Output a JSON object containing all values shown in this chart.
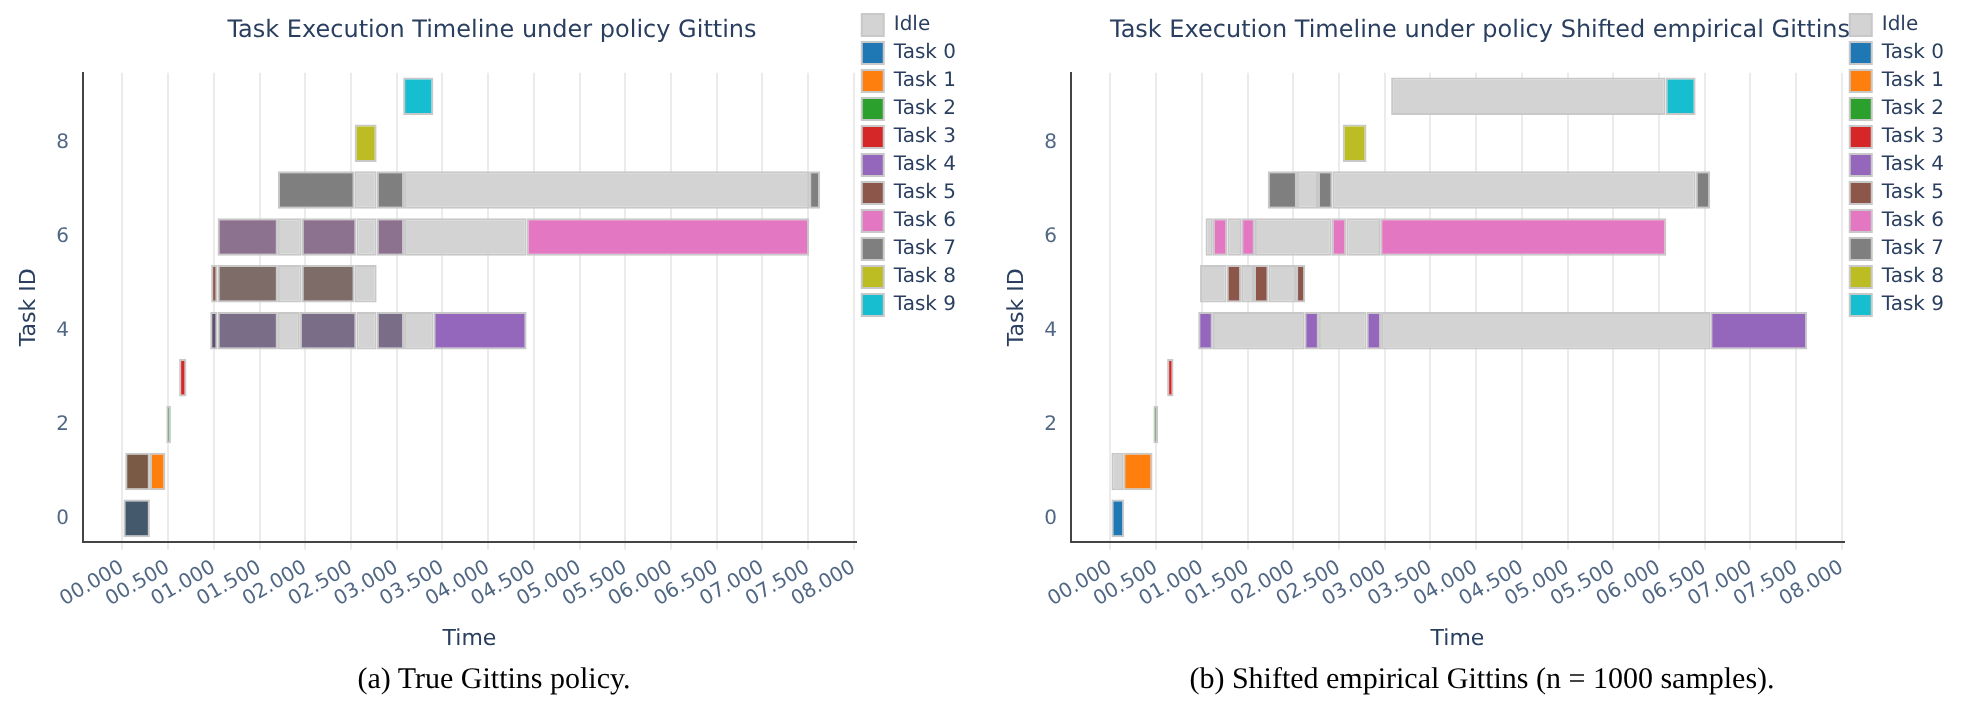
{
  "chart_data": [
    {
      "type": "bar",
      "orientation": "horizontal",
      "title": "Task Execution Timeline under policy Gittins",
      "xlabel": "Time",
      "ylabel": "Task ID",
      "legend": "top right",
      "grid": "x",
      "categories": [
        null,
        "8",
        null,
        "6",
        null,
        "4",
        null,
        "2",
        null,
        "0"
      ],
      "xlim": [
        -0.43,
        8.02
      ],
      "xticks": [
        {
          "value": 0,
          "label": "00.000"
        },
        {
          "value": 0.5,
          "label": "00.500"
        },
        {
          "value": 1,
          "label": "01.000"
        },
        {
          "value": 1.5,
          "label": "01.500"
        },
        {
          "value": 2,
          "label": "02.000"
        },
        {
          "value": 2.5,
          "label": "02.500"
        },
        {
          "value": 3,
          "label": "03.000"
        },
        {
          "value": 3.5,
          "label": "03.500"
        },
        {
          "value": 4,
          "label": "04.000"
        },
        {
          "value": 4.5,
          "label": "04.500"
        },
        {
          "value": 5,
          "label": "05.000"
        },
        {
          "value": 5.5,
          "label": "05.500"
        },
        {
          "value": 6,
          "label": "06.000"
        },
        {
          "value": 6.5,
          "label": "06.500"
        },
        {
          "value": 7,
          "label": "07.000"
        },
        {
          "value": 7.5,
          "label": "07.500"
        },
        {
          "value": 8,
          "label": "08.000"
        }
      ],
      "annotations": [
        "(a) True Gittins policy."
      ],
      "series": [
        {
          "name": "Idle",
          "color": "#d3d3d3",
          "values": [
            null,
            null,
            0.24,
            0.26,
            0.26,
            0.24,
            null,
            null,
            null,
            null
          ],
          "base": [
            null,
            null,
            2.54,
            1.7,
            1.7,
            1.7,
            null,
            null,
            null,
            null
          ]
        },
        {
          "name": "Task 0",
          "color": "#1f77b4",
          "values": [
            null,
            null,
            null,
            null,
            null,
            null,
            null,
            null,
            null,
            null
          ],
          "base": [
            null,
            null,
            null,
            null,
            null,
            null,
            null,
            null,
            null,
            null
          ]
        },
        {
          "name": "Task 1",
          "color": "#ff7f0e",
          "values": [
            null,
            null,
            null,
            null,
            null,
            null,
            null,
            null,
            0.17,
            null
          ],
          "base": [
            null,
            null,
            null,
            null,
            null,
            null,
            null,
            null,
            0.3,
            null
          ]
        },
        {
          "name": "Task 2",
          "color": "#2ca02c",
          "values": [
            null,
            null,
            null,
            null,
            null,
            null,
            null,
            0.05,
            null,
            null
          ],
          "base": [
            null,
            null,
            null,
            null,
            null,
            null,
            null,
            0.48,
            null,
            null
          ]
        },
        {
          "name": "Task 3",
          "color": "#d62728",
          "values": [
            null,
            null,
            null,
            null,
            null,
            null,
            0.08,
            null,
            null,
            null
          ],
          "base": [
            null,
            null,
            null,
            null,
            null,
            null,
            0.62,
            null,
            null,
            null
          ]
        },
        {
          "name": "Task 4",
          "color": "#9467bd",
          "values": [
            null,
            null,
            null,
            null,
            null,
            1.02,
            null,
            null,
            null,
            null
          ],
          "base": [
            null,
            null,
            null,
            null,
            null,
            3.4,
            null,
            null,
            null,
            null
          ]
        },
        {
          "name": "Task 5",
          "color": "#8c564b",
          "values": [
            null,
            null,
            null,
            null,
            0.07,
            null,
            null,
            null,
            null,
            null
          ],
          "base": [
            null,
            null,
            null,
            null,
            0.97,
            null,
            null,
            null,
            null,
            null
          ]
        },
        {
          "name": "Task 6",
          "color": "#e377c2",
          "values": [
            null,
            null,
            null,
            3.09,
            null,
            null,
            null,
            null,
            null,
            null
          ],
          "base": [
            null,
            null,
            null,
            4.42,
            null,
            null,
            null,
            null,
            null,
            null
          ]
        },
        {
          "name": "Task 7",
          "color": "#7f7f7f",
          "values": [
            null,
            null,
            0.84,
            null,
            null,
            null,
            null,
            null,
            null,
            null
          ],
          "base": [
            null,
            null,
            1.7,
            null,
            null,
            null,
            null,
            null,
            null,
            null
          ]
        },
        {
          "name": "Task 8",
          "color": "#bcbd22",
          "values": [
            null,
            0.24,
            null,
            null,
            null,
            null,
            null,
            null,
            null,
            null
          ],
          "base": [
            null,
            2.54,
            null,
            null,
            null,
            null,
            null,
            null,
            null,
            null
          ]
        },
        {
          "name": "Task 9",
          "color": "#17becf",
          "values": [
            0.33,
            null,
            null,
            null,
            null,
            null,
            null,
            null,
            null,
            null
          ],
          "base": [
            3.07,
            null,
            null,
            null,
            null,
            null,
            null,
            null,
            null,
            null
          ]
        },
        {
          "color": "#d3d3d3",
          "values": [
            null,
            null,
            4.43,
            0.22,
            0.24,
            0.22,
            null,
            null,
            null,
            null
          ],
          "base": [
            null,
            null,
            3.08,
            2.56,
            2.54,
            2.56,
            null,
            null,
            null,
            null
          ]
        },
        {
          "color": "#d3d3d3",
          "values": [
            null,
            null,
            null,
            1.34,
            null,
            0.32,
            null,
            null,
            null,
            null
          ],
          "base": [
            null,
            null,
            null,
            3.08,
            null,
            3.08,
            null,
            null,
            null,
            null
          ]
        },
        {
          "color": "#7f7f7f",
          "values": [
            null,
            null,
            0.3,
            null,
            null,
            null,
            null,
            null,
            null,
            null
          ],
          "base": [
            null,
            null,
            2.78,
            null,
            null,
            null,
            null,
            null,
            null,
            null
          ]
        },
        {
          "color": "#7f7f7f",
          "values": [
            null,
            null,
            0.12,
            null,
            null,
            null,
            null,
            null,
            null,
            null
          ],
          "base": [
            null,
            null,
            7.51,
            null,
            null,
            null,
            null,
            null,
            null,
            null
          ]
        },
        {
          "color": "#44596b",
          "values": [
            null,
            null,
            null,
            null,
            null,
            null,
            null,
            null,
            null,
            0.3
          ],
          "base": [
            null,
            null,
            null,
            null,
            null,
            null,
            null,
            null,
            null,
            0
          ]
        },
        {
          "color": "#7a5a45",
          "values": [
            null,
            null,
            null,
            null,
            null,
            null,
            null,
            null,
            0.27,
            null
          ],
          "base": [
            null,
            null,
            null,
            null,
            null,
            null,
            null,
            null,
            0.03,
            null
          ]
        },
        {
          "color": "#5f5070",
          "values": [
            null,
            null,
            null,
            null,
            null,
            0.08,
            null,
            null,
            null,
            null
          ],
          "base": [
            null,
            null,
            null,
            null,
            null,
            0.96,
            null,
            null,
            null,
            null
          ]
        },
        {
          "color": "#7a6d88",
          "values": [
            null,
            null,
            null,
            null,
            null,
            0.66,
            null,
            null,
            null,
            null
          ],
          "base": [
            null,
            null,
            null,
            null,
            null,
            1.04,
            null,
            null,
            null,
            null
          ]
        },
        {
          "color": "#7a6d88",
          "values": [
            null,
            null,
            null,
            null,
            null,
            0.62,
            null,
            null,
            null,
            null
          ],
          "base": [
            null,
            null,
            null,
            null,
            null,
            1.94,
            null,
            null,
            null,
            null
          ]
        },
        {
          "color": "#7a6d88",
          "values": [
            null,
            null,
            null,
            null,
            null,
            0.3,
            null,
            null,
            null,
            null
          ],
          "base": [
            null,
            null,
            null,
            null,
            null,
            2.78,
            null,
            null,
            null,
            null
          ]
        },
        {
          "color": "#7d6c68",
          "values": [
            null,
            null,
            null,
            null,
            0.66,
            null,
            null,
            null,
            null,
            null
          ],
          "base": [
            null,
            null,
            null,
            null,
            1.04,
            null,
            null,
            null,
            null,
            null
          ]
        },
        {
          "color": "#7d6c68",
          "values": [
            null,
            null,
            null,
            null,
            0.58,
            null,
            null,
            null,
            null,
            null
          ],
          "base": [
            null,
            null,
            null,
            null,
            1.96,
            null,
            null,
            null,
            null,
            null
          ]
        },
        {
          "color": "#8d7290",
          "values": [
            null,
            null,
            null,
            0.66,
            null,
            null,
            null,
            null,
            null,
            null
          ],
          "base": [
            null,
            null,
            null,
            1.04,
            null,
            null,
            null,
            null,
            null,
            null
          ]
        },
        {
          "color": "#8d7290",
          "values": [
            null,
            null,
            null,
            0.6,
            null,
            null,
            null,
            null,
            null,
            null
          ],
          "base": [
            null,
            null,
            null,
            1.96,
            null,
            null,
            null,
            null,
            null,
            null
          ]
        },
        {
          "color": "#8d7290",
          "values": [
            null,
            null,
            null,
            0.3,
            null,
            null,
            null,
            null,
            null,
            null
          ],
          "base": [
            null,
            null,
            null,
            2.78,
            null,
            null,
            null,
            null,
            null,
            null
          ]
        }
      ]
    },
    {
      "type": "bar",
      "orientation": "horizontal",
      "title": "Task Execution Timeline under policy Shifted empirical Gittins",
      "xlabel": "Time",
      "ylabel": "Task ID",
      "legend": "top right",
      "grid": "x",
      "categories": [
        null,
        "8",
        null,
        "6",
        null,
        "4",
        null,
        "2",
        null,
        "0"
      ],
      "xlim": [
        -0.43,
        8.02
      ],
      "xticks": [
        {
          "value": 0,
          "label": "00.000"
        },
        {
          "value": 0.5,
          "label": "00.500"
        },
        {
          "value": 1,
          "label": "01.000"
        },
        {
          "value": 1.5,
          "label": "01.500"
        },
        {
          "value": 2,
          "label": "02.000"
        },
        {
          "value": 2.5,
          "label": "02.500"
        },
        {
          "value": 3,
          "label": "03.000"
        },
        {
          "value": 3.5,
          "label": "03.500"
        },
        {
          "value": 4,
          "label": "04.000"
        },
        {
          "value": 4.5,
          "label": "04.500"
        },
        {
          "value": 5,
          "label": "05.000"
        },
        {
          "value": 5.5,
          "label": "05.500"
        },
        {
          "value": 6,
          "label": "06.000"
        },
        {
          "value": 6.5,
          "label": "06.500"
        },
        {
          "value": 7,
          "label": "07.000"
        },
        {
          "value": 7.5,
          "label": "07.500"
        },
        {
          "value": 8,
          "label": "08.000"
        }
      ],
      "annotations": [
        "(b) Shifted empirical Gittins (n = 1000 samples)."
      ],
      "series": [
        {
          "name": "Idle",
          "color": "#d3d3d3",
          "values": [
            3.0,
            null,
            0.23,
            0.08,
            0.29,
            1.0,
            null,
            null,
            0.14,
            null
          ],
          "base": [
            3.07,
            null,
            2.04,
            1.04,
            0.98,
            1.12,
            null,
            null,
            0,
            null
          ]
        },
        {
          "name": "Task 0",
          "color": "#1f77b4",
          "values": [
            null,
            null,
            null,
            null,
            null,
            null,
            null,
            null,
            null,
            0.15
          ],
          "base": [
            null,
            null,
            null,
            null,
            null,
            null,
            null,
            null,
            null,
            0
          ]
        },
        {
          "name": "Task 1",
          "color": "#ff7f0e",
          "values": [
            null,
            null,
            null,
            null,
            null,
            null,
            null,
            null,
            0.32,
            null
          ],
          "base": [
            null,
            null,
            null,
            null,
            null,
            null,
            null,
            null,
            0.14,
            null
          ]
        },
        {
          "name": "Task 2",
          "color": "#2ca02c",
          "values": [
            null,
            null,
            null,
            null,
            null,
            null,
            null,
            0.05,
            null,
            null
          ],
          "base": [
            null,
            null,
            null,
            null,
            null,
            null,
            null,
            0.47,
            null,
            null
          ]
        },
        {
          "name": "Task 3",
          "color": "#d62728",
          "values": [
            null,
            null,
            null,
            null,
            null,
            null,
            0.07,
            null,
            null,
            null
          ],
          "base": [
            null,
            null,
            null,
            null,
            null,
            null,
            0.62,
            null,
            null,
            null
          ]
        },
        {
          "name": "Task 4",
          "color": "#9467bd",
          "values": [
            null,
            null,
            null,
            null,
            null,
            0.16,
            null,
            null,
            null,
            null
          ],
          "base": [
            null,
            null,
            null,
            null,
            null,
            0.96,
            null,
            null,
            null,
            null
          ]
        },
        {
          "name": "Task 5",
          "color": "#8c564b",
          "values": [
            null,
            null,
            null,
            null,
            0.16,
            null,
            null,
            null,
            null,
            null
          ],
          "base": [
            null,
            null,
            null,
            null,
            1.27,
            null,
            null,
            null,
            null,
            null
          ]
        },
        {
          "name": "Task 6",
          "color": "#e377c2",
          "values": [
            null,
            null,
            null,
            0.16,
            null,
            null,
            null,
            null,
            null,
            null
          ],
          "base": [
            null,
            null,
            null,
            1.12,
            null,
            null,
            null,
            null,
            null,
            null
          ]
        },
        {
          "name": "Task 7",
          "color": "#7f7f7f",
          "values": [
            null,
            null,
            0.32,
            null,
            null,
            null,
            null,
            null,
            null,
            null
          ],
          "base": [
            null,
            null,
            1.72,
            null,
            null,
            null,
            null,
            null,
            null,
            null
          ]
        },
        {
          "name": "Task 8",
          "color": "#bcbd22",
          "values": [
            null,
            0.26,
            null,
            null,
            null,
            null,
            null,
            null,
            null,
            null
          ],
          "base": [
            null,
            2.54,
            null,
            null,
            null,
            null,
            null,
            null,
            null,
            null
          ]
        },
        {
          "name": "Task 9",
          "color": "#17becf",
          "values": [
            0.33,
            null,
            null,
            null,
            null,
            null,
            null,
            null,
            null,
            null
          ],
          "base": [
            6.07,
            null,
            null,
            null,
            null,
            null,
            null,
            null,
            null,
            null
          ]
        },
        {
          "color": "#d3d3d3",
          "values": [
            null,
            null,
            3.97,
            0.15,
            0.14,
            0.52,
            null,
            null,
            null,
            null
          ],
          "base": [
            null,
            null,
            2.43,
            1.28,
            1.43,
            2.28,
            null,
            null,
            null,
            null
          ]
        },
        {
          "color": "#d3d3d3",
          "values": [
            null,
            null,
            null,
            0.84,
            0.3,
            3.6,
            null,
            null,
            null,
            null
          ],
          "base": [
            null,
            null,
            null,
            1.58,
            1.73,
            2.96,
            null,
            null,
            null,
            null
          ]
        },
        {
          "color": "#d3d3d3",
          "values": [
            null,
            null,
            null,
            0.37,
            null,
            null,
            null,
            null,
            null,
            null
          ],
          "base": [
            null,
            null,
            null,
            2.58,
            null,
            null,
            null,
            null,
            null,
            null
          ]
        },
        {
          "color": "#9467bd",
          "values": [
            null,
            null,
            null,
            null,
            null,
            0.16,
            null,
            null,
            null,
            null
          ],
          "base": [
            null,
            null,
            null,
            null,
            null,
            2.12,
            null,
            null,
            null,
            null
          ]
        },
        {
          "color": "#9467bd",
          "values": [
            null,
            null,
            null,
            null,
            null,
            0.16,
            null,
            null,
            null,
            null
          ],
          "base": [
            null,
            null,
            null,
            null,
            null,
            2.8,
            null,
            null,
            null,
            null
          ]
        },
        {
          "color": "#9467bd",
          "values": [
            null,
            null,
            null,
            null,
            null,
            1.06,
            null,
            null,
            null,
            null
          ],
          "base": [
            null,
            null,
            null,
            null,
            null,
            6.56,
            null,
            null,
            null,
            null
          ]
        },
        {
          "color": "#8c564b",
          "values": [
            null,
            null,
            null,
            null,
            0.16,
            null,
            null,
            null,
            null,
            null
          ],
          "base": [
            null,
            null,
            null,
            null,
            1.57,
            null,
            null,
            null,
            null,
            null
          ]
        },
        {
          "color": "#8c564b",
          "values": [
            null,
            null,
            null,
            null,
            0.1,
            null,
            null,
            null,
            null,
            null
          ],
          "base": [
            null,
            null,
            null,
            null,
            2.03,
            null,
            null,
            null,
            null,
            null
          ]
        },
        {
          "color": "#e377c2",
          "values": [
            null,
            null,
            null,
            0.15,
            null,
            null,
            null,
            null,
            null,
            null
          ],
          "base": [
            null,
            null,
            null,
            1.43,
            null,
            null,
            null,
            null,
            null,
            null
          ]
        },
        {
          "color": "#e377c2",
          "values": [
            null,
            null,
            null,
            0.16,
            null,
            null,
            null,
            null,
            null,
            null
          ],
          "base": [
            null,
            null,
            null,
            2.42,
            null,
            null,
            null,
            null,
            null,
            null
          ]
        },
        {
          "color": "#e377c2",
          "values": [
            null,
            null,
            null,
            3.13,
            null,
            null,
            null,
            null,
            null,
            null
          ],
          "base": [
            null,
            null,
            null,
            2.95,
            null,
            null,
            null,
            null,
            null,
            null
          ]
        },
        {
          "color": "#7f7f7f",
          "values": [
            null,
            null,
            0.16,
            null,
            null,
            null,
            null,
            null,
            null,
            null
          ],
          "base": [
            null,
            null,
            2.27,
            null,
            null,
            null,
            null,
            null,
            null,
            null
          ]
        },
        {
          "color": "#7f7f7f",
          "values": [
            null,
            null,
            0.16,
            null,
            null,
            null,
            null,
            null,
            null,
            null
          ],
          "base": [
            null,
            null,
            6.4,
            null,
            null,
            null,
            null,
            null,
            null,
            null
          ]
        }
      ]
    }
  ]
}
